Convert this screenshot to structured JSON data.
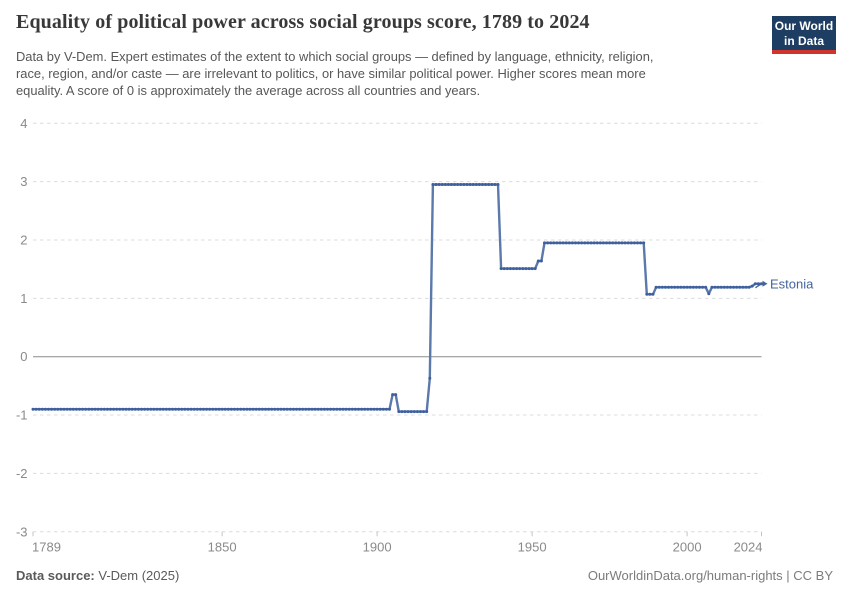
{
  "header": {
    "title": "Equality of political power across social groups score, 1789 to 2024",
    "subtitle_lines": [
      "Data by V-Dem. Expert estimates of the extent to which social groups — defined by language, ethnicity, religion,",
      "race, region, and/or caste — are irrelevant to politics, or have similar political power. Higher scores mean more",
      "equality. A score of 0 is approximately the average across all countries and years."
    ],
    "logo": {
      "line1": "Our World",
      "line2": "in Data",
      "bg_color": "#1d3d63",
      "bar_color": "#d0342c"
    }
  },
  "footer": {
    "source_label": "Data source:",
    "source_value": " V-Dem (2025)",
    "right_text": "OurWorldinData.org/human-rights | CC BY"
  },
  "chart_data": {
    "type": "line",
    "title": "Equality of political power across social groups score, 1789 to 2024",
    "xlabel": "",
    "ylabel": "",
    "x": {
      "min": 1789,
      "max": 2024,
      "ticks": [
        1789,
        1850,
        1900,
        1950,
        2000,
        2024
      ]
    },
    "y": {
      "min": -3,
      "max": 4,
      "ticks": [
        4,
        3,
        2,
        1,
        0,
        -1,
        -2,
        -3
      ]
    },
    "grid": "horizontal-dashed",
    "zero_line": true,
    "legend_position": "end-of-line-label",
    "colors": {
      "line": "#5b79ab",
      "dot": "#3d5f9e",
      "label": "#44659e",
      "grid": "#dcdcdc",
      "zero": "#8c8c8c",
      "tick": "#c4c4c4",
      "axis_text": "#8a8a8a"
    },
    "series": [
      {
        "name": "Estonia",
        "segments": [
          {
            "from": 1789,
            "to": 1904,
            "value": -0.9
          },
          {
            "from": 1905,
            "to": 1906,
            "value": -0.65
          },
          {
            "from": 1907,
            "to": 1916,
            "value": -0.94
          },
          {
            "from": 1917,
            "to": 1917,
            "value": -0.37
          },
          {
            "from": 1918,
            "to": 1939,
            "value": 2.95
          },
          {
            "from": 1940,
            "to": 1951,
            "value": 1.51
          },
          {
            "from": 1952,
            "to": 1953,
            "value": 1.64
          },
          {
            "from": 1954,
            "to": 1986,
            "value": 1.95
          },
          {
            "from": 1987,
            "to": 1989,
            "value": 1.07
          },
          {
            "from": 1990,
            "to": 2006,
            "value": 1.19
          },
          {
            "from": 2007,
            "to": 2007,
            "value": 1.08
          },
          {
            "from": 2008,
            "to": 2020,
            "value": 1.19
          },
          {
            "from": 2021,
            "to": 2021,
            "value": 1.21
          },
          {
            "from": 2022,
            "to": 2024,
            "value": 1.25
          }
        ]
      }
    ]
  }
}
